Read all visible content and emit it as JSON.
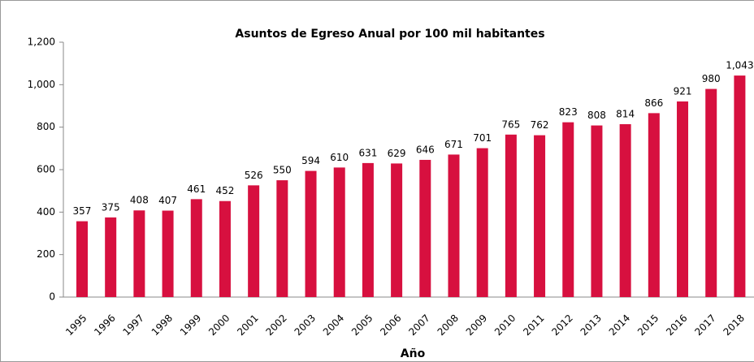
{
  "chart_data": {
    "type": "bar",
    "title": "Asuntos de Egreso Anual por 100 mil habitantes",
    "x_label": "Año",
    "categories": [
      "1995",
      "1996",
      "1997",
      "1998",
      "1999",
      "2000",
      "2001",
      "2002",
      "2003",
      "2004",
      "2005",
      "2006",
      "2007",
      "2008",
      "2009",
      "2010",
      "2011",
      "2012",
      "2013",
      "2014",
      "2015",
      "2016",
      "2017",
      "2018"
    ],
    "values": [
      357,
      375,
      408,
      407,
      461,
      452,
      526,
      550,
      594,
      610,
      631,
      629,
      646,
      671,
      701,
      765,
      762,
      823,
      808,
      814,
      866,
      921,
      980,
      1043
    ],
    "value_labels": [
      "357",
      "375",
      "408",
      "407",
      "461",
      "452",
      "526",
      "550",
      "594",
      "610",
      "631",
      "629",
      "646",
      "671",
      "701",
      "765",
      "762",
      "823",
      "808",
      "814",
      "866",
      "921",
      "980",
      "1,043"
    ],
    "color": "#d7103f",
    "ylim": [
      0,
      1200
    ],
    "yticks": [
      0,
      200,
      400,
      600,
      800,
      {
        "value": 1000,
        "label": "1,000"
      },
      {
        "value": 1200,
        "label": "1,200"
      }
    ],
    "grid": false
  }
}
